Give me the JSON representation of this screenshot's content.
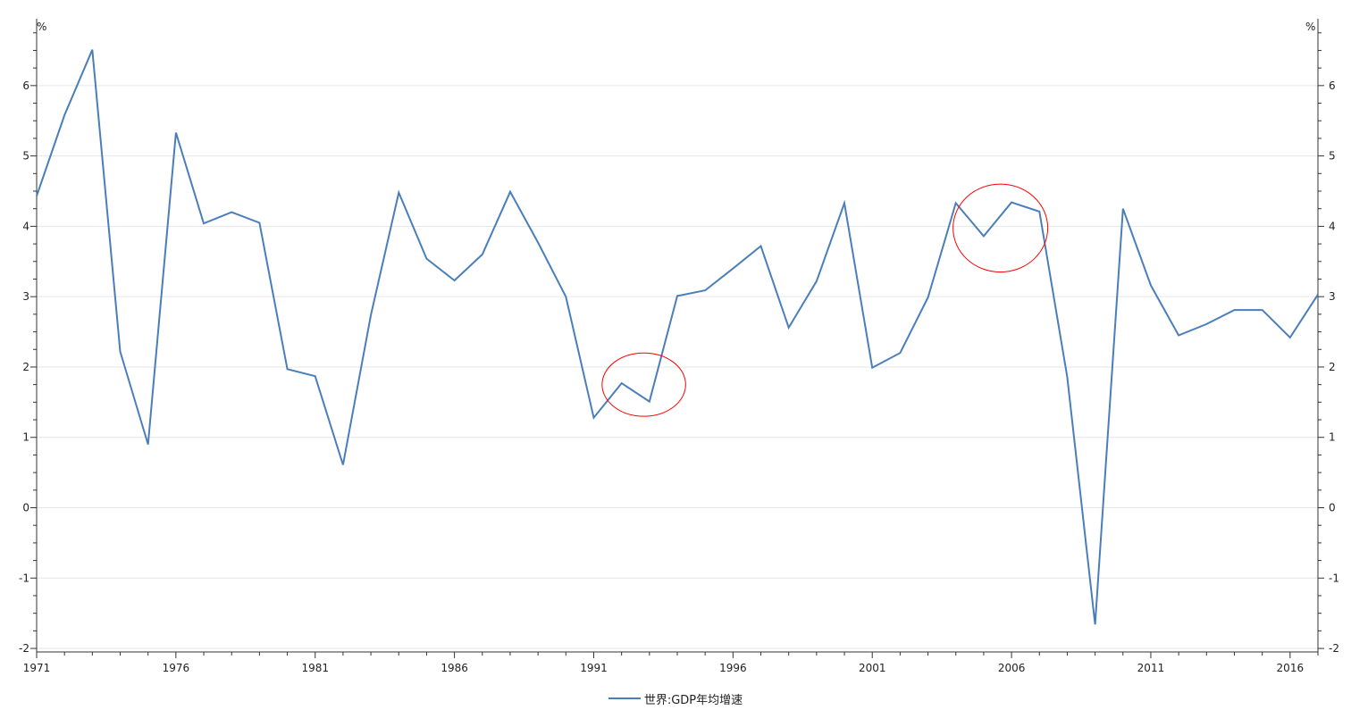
{
  "chart_data": {
    "type": "line",
    "title": "",
    "xlabel": "",
    "ylabel": "",
    "y_unit_left": "%",
    "y_unit_right": "%",
    "x": [
      1971,
      1972,
      1973,
      1974,
      1975,
      1976,
      1977,
      1978,
      1979,
      1980,
      1981,
      1982,
      1983,
      1984,
      1985,
      1986,
      1987,
      1988,
      1989,
      1990,
      1991,
      1992,
      1993,
      1994,
      1995,
      1996,
      1997,
      1998,
      1999,
      2000,
      2001,
      2002,
      2003,
      2004,
      2005,
      2006,
      2007,
      2008,
      2009,
      2010,
      2011,
      2012,
      2013,
      2014,
      2015,
      2016,
      2017
    ],
    "x_tick_labels": [
      "1971",
      "1976",
      "1981",
      "1986",
      "1991",
      "1996",
      "2001",
      "2006",
      "2011",
      "2016"
    ],
    "y_tick_labels": [
      "-2",
      "-1",
      "0",
      "1",
      "2",
      "3",
      "4",
      "5",
      "6"
    ],
    "xlim": [
      1971,
      2017
    ],
    "ylim": [
      -2.05,
      6.95
    ],
    "grid": "horizontal",
    "legend_position": "bottom-center",
    "series": [
      {
        "name": "世界:GDP年均增速",
        "color": "#4A7EBB",
        "values": [
          4.43,
          5.58,
          6.51,
          2.22,
          0.9,
          5.33,
          4.04,
          4.2,
          4.05,
          1.97,
          1.87,
          0.61,
          2.74,
          4.48,
          3.54,
          3.23,
          3.6,
          4.49,
          3.77,
          3.0,
          1.28,
          1.77,
          1.51,
          3.01,
          3.09,
          3.4,
          3.72,
          2.56,
          3.22,
          4.33,
          1.99,
          2.2,
          2.99,
          4.33,
          3.86,
          4.34,
          4.21,
          1.86,
          -1.66,
          4.25,
          3.16,
          2.45,
          2.61,
          2.81,
          2.81,
          2.42,
          3.03
        ]
      }
    ],
    "annotations": [
      {
        "type": "ellipse",
        "color": "#FF0000",
        "around_x": [
          1991.3,
          1994.3
        ],
        "around_y": [
          1.3,
          2.2
        ]
      },
      {
        "type": "ellipse",
        "color": "#FF0000",
        "around_x": [
          2003.9,
          2007.3
        ],
        "around_y": [
          3.35,
          4.6
        ]
      }
    ]
  }
}
